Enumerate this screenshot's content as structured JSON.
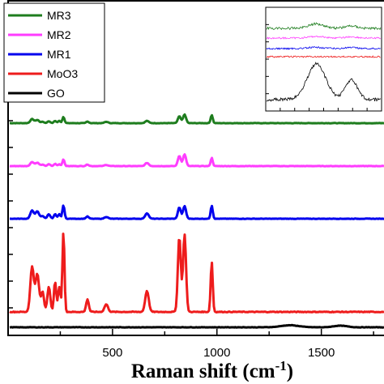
{
  "chart_data": {
    "type": "line",
    "xlabel": "Raman shift (cm",
    "xlabel_sup": "-1",
    "xlabel_suffix": ")",
    "xlim": [
      0,
      1800
    ],
    "x_ticks": [
      500,
      1000,
      1500
    ],
    "legend": {
      "placement": "top-left",
      "border": true
    },
    "grid": false,
    "series": [
      {
        "name": "MR3",
        "color": "#1e7d1e",
        "baseline": 0.38,
        "peaks": [
          [
            115,
            0.18,
            12
          ],
          [
            140,
            0.14,
            12
          ],
          [
            165,
            0.06,
            10
          ],
          [
            195,
            0.08,
            10
          ],
          [
            225,
            0.1,
            8
          ],
          [
            245,
            0.1,
            8
          ],
          [
            265,
            0.28,
            7
          ],
          [
            380,
            0.07,
            9
          ],
          [
            470,
            0.06,
            12
          ],
          [
            665,
            0.1,
            12
          ],
          [
            820,
            0.3,
            10
          ],
          [
            845,
            0.38,
            10
          ],
          [
            975,
            0.36,
            7
          ]
        ]
      },
      {
        "name": "MR2",
        "color": "#ff3cff",
        "baseline": 0.36,
        "peaks": [
          [
            115,
            0.18,
            12
          ],
          [
            140,
            0.15,
            12
          ],
          [
            165,
            0.06,
            10
          ],
          [
            195,
            0.08,
            10
          ],
          [
            225,
            0.1,
            8
          ],
          [
            245,
            0.08,
            8
          ],
          [
            265,
            0.3,
            7
          ],
          [
            380,
            0.07,
            9
          ],
          [
            470,
            0.05,
            12
          ],
          [
            665,
            0.14,
            12
          ],
          [
            820,
            0.45,
            10
          ],
          [
            845,
            0.52,
            10
          ],
          [
            975,
            0.36,
            7
          ]
        ]
      },
      {
        "name": "MR1",
        "color": "#0000ee",
        "baseline": 0.3,
        "peaks": [
          [
            115,
            0.36,
            12
          ],
          [
            140,
            0.32,
            12
          ],
          [
            165,
            0.12,
            10
          ],
          [
            195,
            0.2,
            10
          ],
          [
            225,
            0.2,
            8
          ],
          [
            245,
            0.2,
            8
          ],
          [
            265,
            0.6,
            7
          ],
          [
            380,
            0.1,
            9
          ],
          [
            470,
            0.08,
            12
          ],
          [
            665,
            0.24,
            12
          ],
          [
            820,
            0.5,
            10
          ],
          [
            845,
            0.56,
            10
          ],
          [
            975,
            0.58,
            7
          ]
        ]
      },
      {
        "name": "MoO3",
        "color": "#ee1c1c",
        "baseline": 0.5,
        "peaks": [
          [
            115,
            0.9,
            12
          ],
          [
            140,
            0.75,
            12
          ],
          [
            165,
            0.4,
            10
          ],
          [
            195,
            0.5,
            10
          ],
          [
            225,
            0.6,
            8
          ],
          [
            245,
            0.5,
            8
          ],
          [
            265,
            1.6,
            7
          ],
          [
            380,
            0.25,
            9
          ],
          [
            470,
            0.15,
            12
          ],
          [
            665,
            0.42,
            12
          ],
          [
            820,
            1.5,
            10
          ],
          [
            845,
            1.55,
            10
          ],
          [
            975,
            1.0,
            7
          ]
        ]
      },
      {
        "name": "GO",
        "color": "#000000",
        "baseline": 0.05,
        "peaks": [
          [
            1350,
            0.09,
            60
          ],
          [
            1590,
            0.07,
            45
          ]
        ]
      }
    ],
    "inset": {
      "xlim": [
        1000,
        1800
      ],
      "series": [
        {
          "name": "MR3",
          "color": "#1e7d1e",
          "peaks": [
            [
              1350,
              0.22,
              80
            ],
            [
              1590,
              0.12,
              60
            ]
          ]
        },
        {
          "name": "MR2",
          "color": "#ff3cff",
          "peaks": [
            [
              1350,
              0.08,
              80
            ],
            [
              1590,
              0.06,
              60
            ]
          ]
        },
        {
          "name": "MR1",
          "color": "#0000ee",
          "peaks": [
            [
              1350,
              0.06,
              80
            ],
            [
              1590,
              0.05,
              60
            ]
          ]
        },
        {
          "name": "MoO3",
          "color": "#ee1c1c",
          "peaks": []
        },
        {
          "name": "GO",
          "color": "#000000",
          "peaks": [
            [
              1350,
              1.0,
              90
            ],
            [
              1590,
              0.55,
              60
            ]
          ]
        }
      ]
    }
  }
}
